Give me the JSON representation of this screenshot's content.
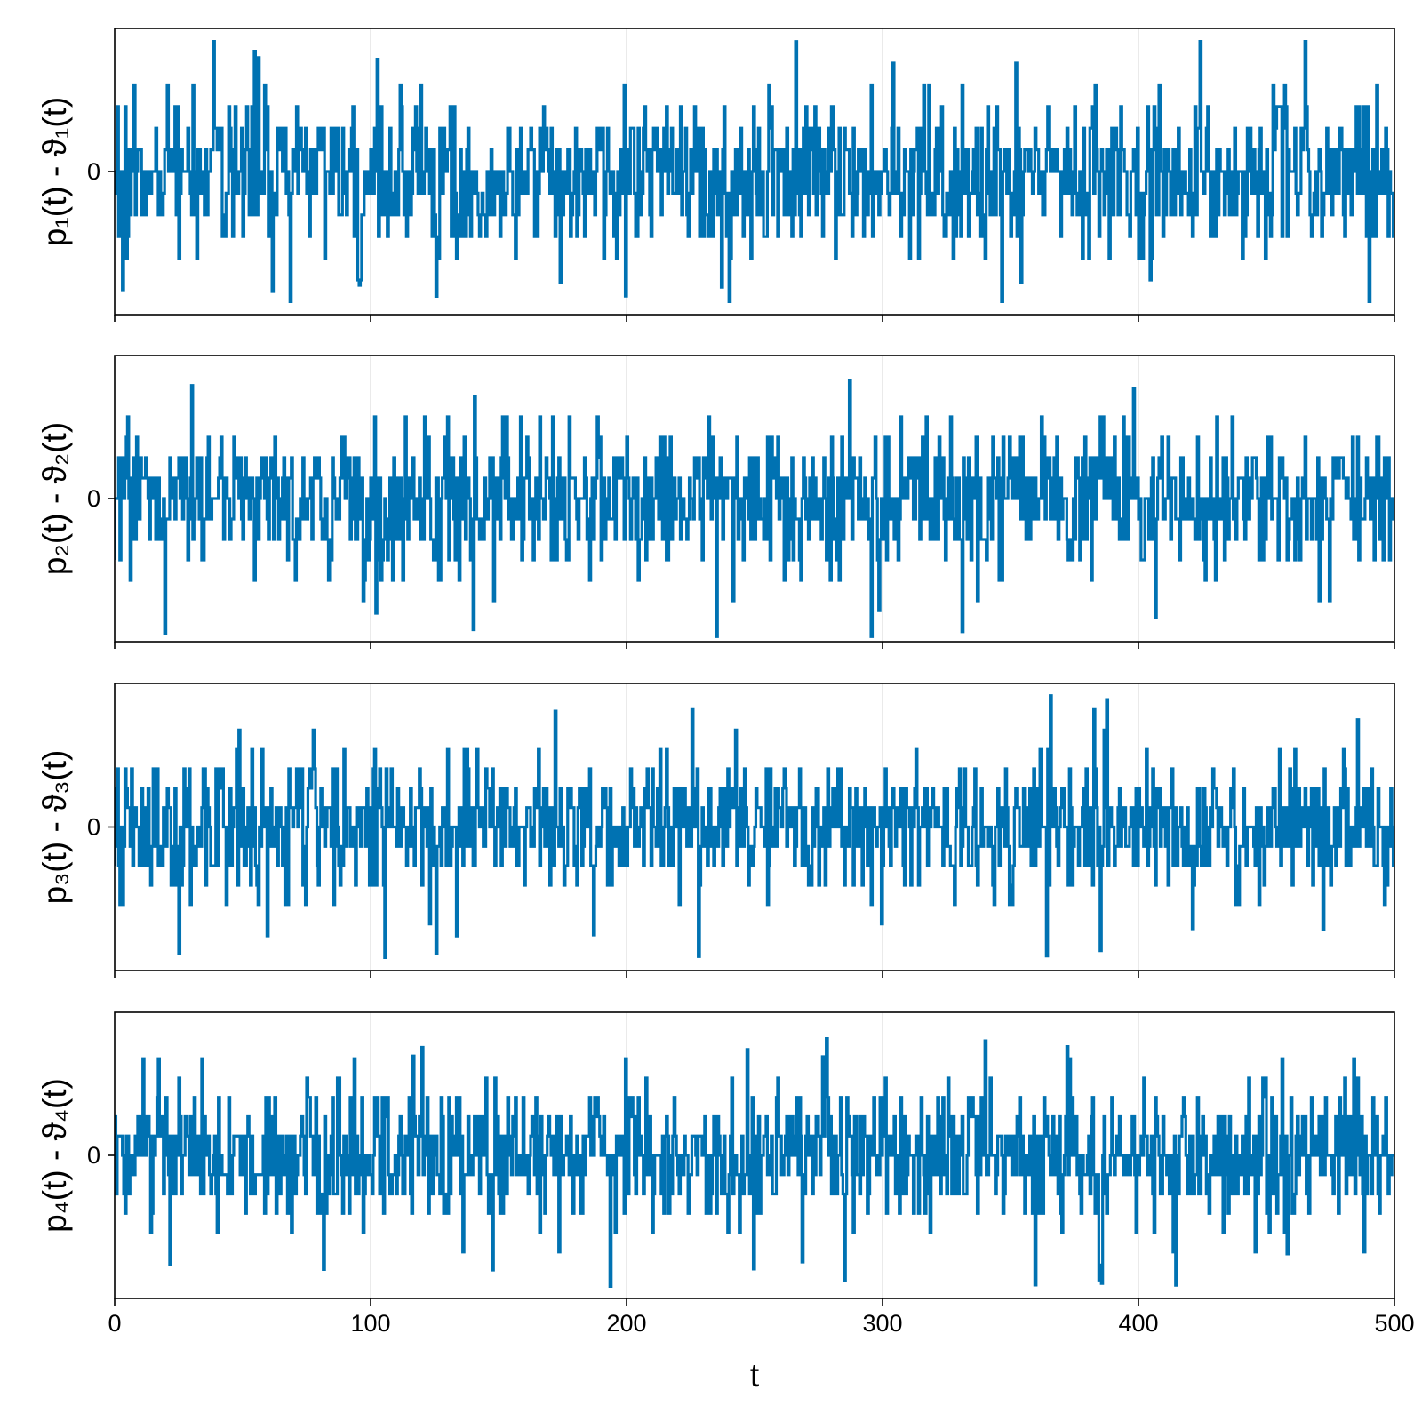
{
  "colors": {
    "series": "#0072b2",
    "grid": "#e3e3e3",
    "frame": "#000000"
  },
  "chart_data": [
    {
      "type": "line",
      "ylabel_main": "p₁(t) - ϑ₁(t)",
      "ytick_labels": [
        "0"
      ],
      "xtick_labels": [
        "",
        "",
        "",
        "",
        "",
        ""
      ],
      "xlabel": "",
      "xlim": [
        0,
        500
      ],
      "ylim": [
        -3.3,
        3.3
      ],
      "series": [
        {
          "color": "#0072b2",
          "x_range": [
            0,
            500
          ],
          "step": 0.5,
          "amplitude_range": [
            -3.0,
            3.0
          ]
        }
      ]
    },
    {
      "type": "line",
      "ylabel_main": "p₂(t) - ϑ₂(t)",
      "ytick_labels": [
        "0"
      ],
      "xtick_labels": [
        "",
        "",
        "",
        "",
        "",
        ""
      ],
      "xlabel": "",
      "xlim": [
        0,
        500
      ],
      "ylim": [
        -3.5,
        3.5
      ],
      "series": [
        {
          "color": "#0072b2",
          "x_range": [
            0,
            500
          ],
          "step": 0.5,
          "amplitude_range": [
            -3.4,
            3.0
          ]
        }
      ]
    },
    {
      "type": "line",
      "ylabel_main": "p₃(t) - ϑ₃(t)",
      "ytick_labels": [
        "0"
      ],
      "xtick_labels": [
        "",
        "",
        "",
        "",
        "",
        ""
      ],
      "xlabel": "",
      "xlim": [
        0,
        500
      ],
      "ylim": [
        -3.7,
        3.7
      ],
      "series": [
        {
          "color": "#0072b2",
          "x_range": [
            0,
            500
          ],
          "step": 0.5,
          "amplitude_range": [
            -3.4,
            3.4
          ]
        }
      ]
    },
    {
      "type": "line",
      "ylabel_main": "p₄(t) - ϑ₄(t)",
      "ytick_labels": [
        "0"
      ],
      "xtick_labels": [
        "0",
        "100",
        "200",
        "300",
        "400",
        "500"
      ],
      "xlabel": "t",
      "xlim": [
        0,
        500
      ],
      "ylim": [
        -3.7,
        3.7
      ],
      "series": [
        {
          "color": "#0072b2",
          "x_range": [
            0,
            500
          ],
          "step": 0.5,
          "amplitude_range": [
            -3.4,
            3.4
          ]
        }
      ]
    }
  ]
}
